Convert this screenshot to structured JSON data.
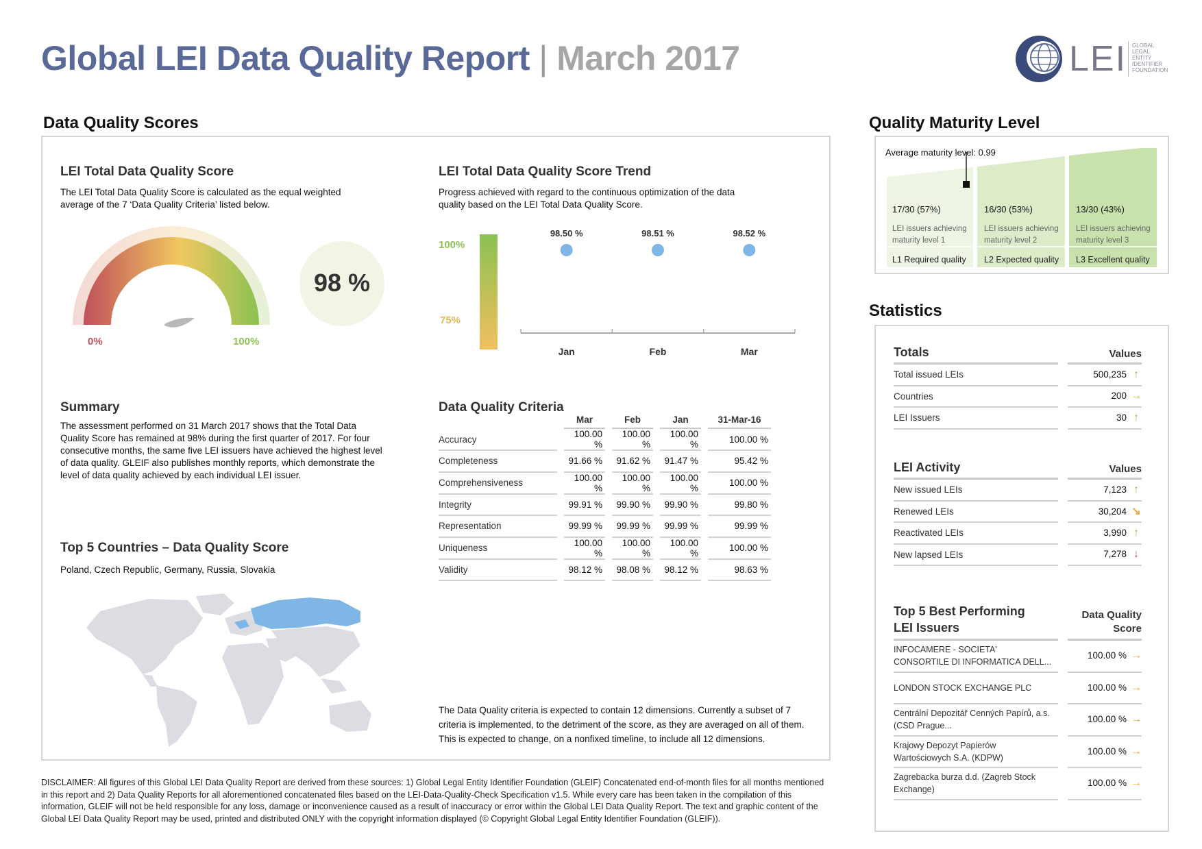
{
  "header": {
    "title": "Global LEI Data Quality Report",
    "separator": "|",
    "date": "March 2017",
    "logo_text": "LEI",
    "logo_side": "GLOBAL LEGAL ENTITY IDENTIFIER FOUNDATION"
  },
  "dqs": {
    "section_title": "Data Quality Scores",
    "total": {
      "title": "LEI Total Data Quality Score",
      "desc": "The LEI Total Data Quality Score is calculated as the equal weighted average of the 7 ‘Data Quality Criteria’ listed below.",
      "gauge_min": "0%",
      "gauge_max": "100%",
      "score": "98 %",
      "score_value": 98
    },
    "trend": {
      "title": "LEI Total Data Quality Score Trend",
      "desc": "Progress achieved with regard to the continuous optimization of the data quality based on the LEI Total Data Quality Score.",
      "scale_top": "100%",
      "scale_bottom": "75%"
    },
    "summary": {
      "title": "Summary",
      "text": "The assessment performed on 31 March 2017 shows that the Total Data Quality Score has remained at 98% during the first quarter of 2017. For four consecutive months, the same five LEI issuers have achieved the highest level of data quality. GLEIF also publishes monthly reports, which demonstrate the level of data quality achieved by each individual LEI issuer."
    },
    "countries": {
      "title": "Top 5 Countries – Data Quality Score",
      "list": "Poland, Czech Republic, Germany, Russia, Slovakia"
    },
    "criteria": {
      "title": "Data Quality Criteria",
      "columns": [
        "Mar",
        "Feb",
        "Jan",
        "31-Mar-16"
      ],
      "rows": [
        {
          "name": "Accuracy",
          "v": [
            "100.00 %",
            "100.00 %",
            "100.00 %",
            "100.00 %"
          ]
        },
        {
          "name": "Completeness",
          "v": [
            "91.66 %",
            "91.62 %",
            "91.47 %",
            "95.42 %"
          ]
        },
        {
          "name": "Comprehensiveness",
          "v": [
            "100.00 %",
            "100.00 %",
            "100.00 %",
            "100.00 %"
          ]
        },
        {
          "name": "Integrity",
          "v": [
            "99.91 %",
            "99.90 %",
            "99.90 %",
            "99.80 %"
          ]
        },
        {
          "name": "Representation",
          "v": [
            "99.99 %",
            "99.99 %",
            "99.99 %",
            "99.99 %"
          ]
        },
        {
          "name": "Uniqueness",
          "v": [
            "100.00 %",
            "100.00 %",
            "100.00 %",
            "100.00 %"
          ]
        },
        {
          "name": "Validity",
          "v": [
            "98.12 %",
            "98.08 %",
            "98.12 %",
            "98.63 %"
          ]
        }
      ],
      "note": "The Data Quality criteria is expected to contain 12 dimensions. Currently a subset of 7 criteria is implemented, to the detriment of the score, as they are averaged on all of them. This is expected to change, on a nonfixed timeline, to include all 12 dimensions."
    }
  },
  "chart_data": {
    "type": "scatter",
    "title": "LEI Total Data Quality Score Trend",
    "categories": [
      "Jan",
      "Feb",
      "Mar"
    ],
    "values": [
      98.5,
      98.51,
      98.52
    ],
    "data_labels": [
      "98.50 %",
      "98.51 %",
      "98.52 %"
    ],
    "point_color": "#7eb6e6"
  },
  "maturity": {
    "section_title": "Quality Maturity Level",
    "average": "Average maturity level: 0.99",
    "average_value": 0.99,
    "levels": [
      {
        "count": "17/30 (57%)",
        "desc": "LEI issuers achieving maturity level 1",
        "name": "L1 Required quality"
      },
      {
        "count": "16/30 (53%)",
        "desc": "LEI issuers achieving maturity level 2",
        "name": "L2 Expected quality"
      },
      {
        "count": "13/30 (43%)",
        "desc": "LEI issuers achieving maturity level 3",
        "name": "L3 Excellent quality"
      }
    ]
  },
  "statistics": {
    "section_title": "Statistics",
    "totals": {
      "header": "Totals",
      "values_header": "Values",
      "rows": [
        {
          "label": "Total issued LEIs",
          "value": "500,235",
          "trend": "up"
        },
        {
          "label": "Countries",
          "value": "200",
          "trend": "right"
        },
        {
          "label": "LEI Issuers",
          "value": "30",
          "trend": "up"
        }
      ]
    },
    "activity": {
      "header": "LEI Activity",
      "values_header": "Values",
      "rows": [
        {
          "label": "New issued LEIs",
          "value": "7,123",
          "trend": "up"
        },
        {
          "label": "Renewed LEIs",
          "value": "30,204",
          "trend": "diag"
        },
        {
          "label": "Reactivated LEIs",
          "value": "3,990",
          "trend": "up"
        },
        {
          "label": "New lapsed LEIs",
          "value": "7,278",
          "trend": "down"
        }
      ]
    },
    "top5": {
      "header_line1": "Top 5 Best Performing",
      "header_line2": "LEI Issuers",
      "score_header_line1": "Data Quality",
      "score_header_line2": "Score",
      "rows": [
        {
          "label1": "INFOCAMERE - SOCIETA'",
          "label2": "CONSORTILE DI INFORMATICA DELL...",
          "value": "100.00 %",
          "trend": "right"
        },
        {
          "label1": "LONDON STOCK EXCHANGE PLC",
          "label2": "",
          "value": "100.00 %",
          "trend": "right"
        },
        {
          "label1": "Centrální Depozitář Cenných Papírů, a.s.",
          "label2": "(CSD Prague...",
          "value": "100.00 %",
          "trend": "right"
        },
        {
          "label1": "Krajowy Depozyt Papierów",
          "label2": "Wartościowych S.A. (KDPW)",
          "value": "100.00 %",
          "trend": "right"
        },
        {
          "label1": "Zagrebacka burza d.d. (Zagreb Stock",
          "label2": "Exchange)",
          "value": "100.00 %",
          "trend": "right"
        }
      ]
    }
  },
  "disclaimer": "DISCLAIMER: All figures of this Global LEI Data Quality Report are derived from these sources: 1) Global Legal Entity Identifier Foundation (GLEIF) Concatenated end-of-month files for all months mentioned in this report and 2) Data Quality Reports for all aforementioned concatenated files based on the LEI-Data-Quality-Check Specification v1.5. While every care has been taken in the compilation of this information, GLEIF will not be held responsible for any loss, damage or inconvenience caused as a result of inaccuracy or error within the Global LEI Data Quality Report. The text and graphic content of the Global LEI Data Quality Report may be used, printed and distributed ONLY with the copyright information displayed (© Copyright Global Legal Entity Identifier Foundation (GLEIF))."
}
